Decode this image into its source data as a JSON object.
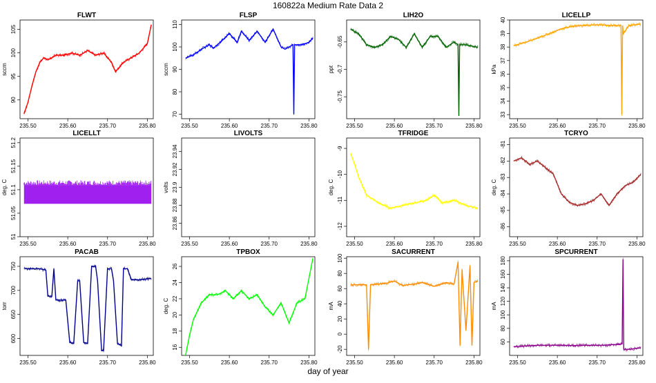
{
  "title": "160822a   Medium Rate Data 2",
  "xlabel": "day of year",
  "chart_data": [
    {
      "type": "line",
      "title": "FLWT",
      "ylabel": "sccm",
      "color": "#ff0000",
      "xlim": [
        235.48,
        235.815
      ],
      "ylim": [
        86,
        107
      ],
      "yticks": [
        90,
        95,
        100,
        105
      ],
      "xticks": [
        235.5,
        235.6,
        235.7,
        235.8
      ],
      "x": [
        235.49,
        235.5,
        235.51,
        235.52,
        235.53,
        235.54,
        235.55,
        235.57,
        235.59,
        235.61,
        235.63,
        235.65,
        235.67,
        235.69,
        235.71,
        235.72,
        235.74,
        235.76,
        235.78,
        235.8,
        235.81
      ],
      "values": [
        87,
        89.5,
        93,
        96,
        98,
        99,
        98.5,
        99.5,
        99.5,
        100,
        99.5,
        100.5,
        99.5,
        100,
        98,
        96,
        98,
        99,
        100,
        102,
        106
      ]
    },
    {
      "type": "line",
      "title": "FLSP",
      "ylabel": "sccm",
      "color": "#0000ff",
      "xlim": [
        235.48,
        235.815
      ],
      "ylim": [
        68,
        112
      ],
      "yticks": [
        70,
        80,
        90,
        100,
        110
      ],
      "xticks": [
        235.5,
        235.6,
        235.7,
        235.8
      ],
      "x": [
        235.49,
        235.51,
        235.53,
        235.55,
        235.56,
        235.58,
        235.6,
        235.62,
        235.63,
        235.65,
        235.67,
        235.69,
        235.71,
        235.73,
        235.74,
        235.76,
        235.762,
        235.764,
        235.78,
        235.8,
        235.81
      ],
      "values": [
        95,
        96.5,
        99,
        101,
        99.5,
        102.5,
        106,
        102,
        107,
        103,
        107,
        102,
        108,
        100,
        99,
        101,
        70,
        101,
        101,
        102,
        104
      ]
    },
    {
      "type": "line",
      "title": "LIH2O",
      "ylabel": "ppt",
      "color": "#006400",
      "xlim": [
        235.48,
        235.815
      ],
      "ylim": [
        -0.79,
        -0.61
      ],
      "yticks": [
        -0.75,
        -0.7,
        -0.65
      ],
      "xticks": [
        235.5,
        235.6,
        235.7,
        235.8
      ],
      "x": [
        235.49,
        235.51,
        235.53,
        235.55,
        235.57,
        235.59,
        235.61,
        235.63,
        235.65,
        235.67,
        235.69,
        235.71,
        235.73,
        235.75,
        235.76,
        235.762,
        235.764,
        235.78,
        235.81
      ],
      "values": [
        -0.627,
        -0.635,
        -0.655,
        -0.66,
        -0.655,
        -0.64,
        -0.645,
        -0.66,
        -0.635,
        -0.66,
        -0.64,
        -0.64,
        -0.66,
        -0.65,
        -0.655,
        -0.785,
        -0.655,
        -0.655,
        -0.66
      ]
    },
    {
      "type": "line",
      "title": "LICELLP",
      "ylabel": "kPa",
      "color": "#ffa500",
      "xlim": [
        235.48,
        235.815
      ],
      "ylim": [
        32.7,
        40
      ],
      "yticks": [
        33,
        34,
        35,
        36,
        37,
        38,
        39,
        40
      ],
      "xticks": [
        235.5,
        235.6,
        235.7,
        235.8
      ],
      "x": [
        235.49,
        235.52,
        235.55,
        235.58,
        235.61,
        235.64,
        235.67,
        235.7,
        235.73,
        235.76,
        235.762,
        235.764,
        235.766,
        235.78,
        235.81
      ],
      "values": [
        38.1,
        38.35,
        38.65,
        39.0,
        39.35,
        39.55,
        39.6,
        39.65,
        39.6,
        39.6,
        33.0,
        39.6,
        39.0,
        39.6,
        39.7
      ]
    },
    {
      "type": "line",
      "title": "LICELLT",
      "ylabel": "deg. C",
      "color": "#a020f0",
      "xlim": [
        235.48,
        235.815
      ],
      "ylim": [
        51.0,
        51.21
      ],
      "yticks": [
        51.0,
        51.05,
        51.1,
        51.15,
        51.2
      ],
      "xticks": [
        235.5,
        235.6,
        235.7,
        235.8
      ],
      "x": [
        235.49,
        235.81
      ],
      "values": [
        51.07,
        51.12
      ],
      "band": [
        51.07,
        51.11,
        51.12
      ]
    },
    {
      "type": "line",
      "title": "LIVOLTS",
      "ylabel": "volts",
      "color": "#000000",
      "xlim": [
        235.48,
        235.815
      ],
      "ylim": [
        23.845,
        23.955
      ],
      "yticks": [
        23.86,
        23.88,
        23.9,
        23.92,
        23.94
      ],
      "xticks": [
        235.5,
        235.6,
        235.7,
        235.8
      ],
      "x": [],
      "values": []
    },
    {
      "type": "line",
      "title": "TFRIDGE",
      "ylabel": "deg. C",
      "color": "#ffff00",
      "xlim": [
        235.48,
        235.815
      ],
      "ylim": [
        -12.4,
        -8.6
      ],
      "yticks": [
        -12,
        -11,
        -10,
        -9
      ],
      "xticks": [
        235.5,
        235.6,
        235.7,
        235.8
      ],
      "x": [
        235.49,
        235.5,
        235.51,
        235.53,
        235.56,
        235.59,
        235.62,
        235.65,
        235.68,
        235.7,
        235.72,
        235.75,
        235.78,
        235.81
      ],
      "values": [
        -9.2,
        -9.6,
        -10.1,
        -10.8,
        -11.1,
        -11.3,
        -11.2,
        -11.1,
        -11.0,
        -10.8,
        -11.1,
        -11.0,
        -11.2,
        -11.3
      ]
    },
    {
      "type": "line",
      "title": "TCRYO",
      "ylabel": "deg. C",
      "color": "#a52a2a",
      "xlim": [
        235.48,
        235.815
      ],
      "ylim": [
        -86.6,
        -80.6
      ],
      "yticks": [
        -86,
        -85,
        -84,
        -83,
        -82,
        -81
      ],
      "xticks": [
        235.5,
        235.6,
        235.7,
        235.8
      ],
      "x": [
        235.49,
        235.51,
        235.53,
        235.55,
        235.57,
        235.59,
        235.61,
        235.63,
        235.65,
        235.67,
        235.69,
        235.71,
        235.73,
        235.75,
        235.77,
        235.79,
        235.81
      ],
      "values": [
        -82.0,
        -81.8,
        -82.2,
        -82.0,
        -82.4,
        -82.8,
        -84.0,
        -84.5,
        -84.7,
        -84.6,
        -84.4,
        -84.0,
        -84.7,
        -84.0,
        -83.5,
        -83.3,
        -82.8
      ]
    },
    {
      "type": "line",
      "title": "PACAB",
      "ylabel": "torr",
      "color": "#00008b",
      "xlim": [
        235.48,
        235.815
      ],
      "ylim": [
        565,
        770
      ],
      "yticks": [
        600,
        650,
        700,
        750
      ],
      "xticks": [
        235.5,
        235.6,
        235.7,
        235.8
      ],
      "x": [
        235.49,
        235.53,
        235.545,
        235.55,
        235.56,
        235.565,
        235.57,
        235.58,
        235.595,
        235.605,
        235.615,
        235.625,
        235.63,
        235.64,
        235.65,
        235.66,
        235.67,
        235.675,
        235.685,
        235.69,
        235.7,
        235.71,
        235.715,
        235.725,
        235.735,
        235.74,
        235.75,
        235.76,
        235.78,
        235.81
      ],
      "values": [
        745,
        745,
        742,
        688,
        688,
        745,
        680,
        680,
        680,
        592,
        590,
        720,
        720,
        592,
        590,
        750,
        750,
        720,
        575,
        575,
        745,
        745,
        720,
        590,
        585,
        745,
        745,
        722,
        722,
        725
      ]
    },
    {
      "type": "line",
      "title": "TPBOX",
      "ylabel": "deg. C",
      "color": "#00ff00",
      "xlim": [
        235.48,
        235.815
      ],
      "ylim": [
        15,
        27.2
      ],
      "yticks": [
        16,
        18,
        20,
        22,
        24,
        26
      ],
      "xticks": [
        235.5,
        235.6,
        235.7,
        235.8
      ],
      "x": [
        235.49,
        235.5,
        235.51,
        235.53,
        235.55,
        235.57,
        235.59,
        235.61,
        235.63,
        235.65,
        235.67,
        235.69,
        235.71,
        235.73,
        235.75,
        235.77,
        235.79,
        235.81
      ],
      "values": [
        15,
        17.5,
        19.5,
        21.5,
        22.5,
        22.5,
        23,
        22,
        23,
        22,
        22.5,
        21,
        20,
        21.5,
        19,
        21.5,
        22,
        27
      ]
    },
    {
      "type": "line",
      "title": "SACURRENT",
      "ylabel": "mA",
      "color": "#ff8c00",
      "xlim": [
        235.48,
        235.815
      ],
      "ylim": [
        -28,
        102
      ],
      "yticks": [
        -20,
        0,
        20,
        40,
        60,
        80,
        100
      ],
      "xticks": [
        235.5,
        235.6,
        235.7,
        235.8
      ],
      "x": [
        235.49,
        235.53,
        235.535,
        235.54,
        235.58,
        235.6,
        235.62,
        235.65,
        235.67,
        235.7,
        235.73,
        235.75,
        235.76,
        235.765,
        235.77,
        235.78,
        235.79,
        235.795,
        235.8,
        235.81
      ],
      "values": [
        65,
        65,
        -20,
        65,
        67,
        70,
        64,
        66,
        68,
        63,
        68,
        66,
        95,
        -15,
        85,
        5,
        90,
        -15,
        68,
        70
      ]
    },
    {
      "type": "line",
      "title": "SPCURRENT",
      "ylabel": "mA",
      "color": "#8b008b",
      "xlim": [
        235.48,
        235.815
      ],
      "ylim": [
        40,
        186
      ],
      "yticks": [
        60,
        80,
        100,
        120,
        140,
        160,
        180
      ],
      "xticks": [
        235.5,
        235.6,
        235.7,
        235.8
      ],
      "x": [
        235.49,
        235.52,
        235.55,
        235.58,
        235.61,
        235.64,
        235.67,
        235.7,
        235.72,
        235.74,
        235.755,
        235.763,
        235.765,
        235.767,
        235.78,
        235.81
      ],
      "values": [
        53,
        54,
        55,
        55,
        55,
        54.5,
        55,
        55,
        55,
        56,
        56,
        57,
        182,
        49,
        49,
        51
      ]
    }
  ]
}
